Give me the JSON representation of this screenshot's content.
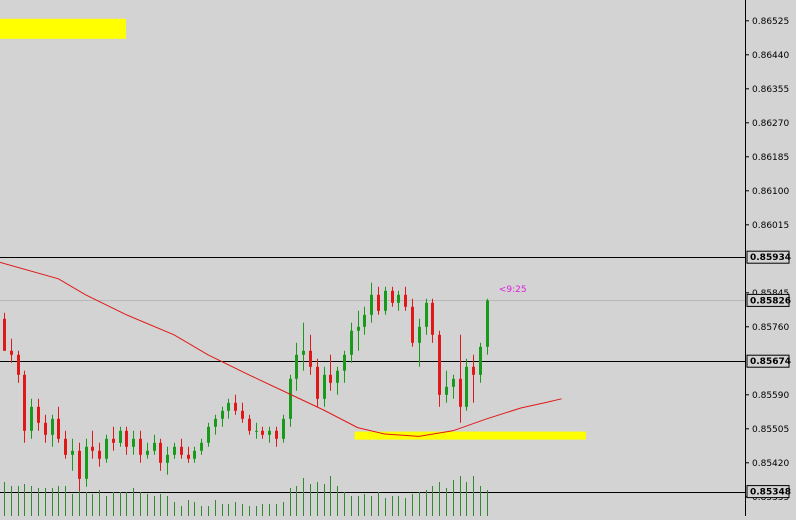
{
  "chart_data": {
    "type": "candlestick",
    "grid": false,
    "legend": "none",
    "y_axis": {
      "position": "right",
      "min": 0.853,
      "max": 0.8658,
      "ticks": [
        "0.86525",
        "0.86440",
        "0.86355",
        "0.86270",
        "0.86185",
        "0.86100",
        "0.86015",
        "0.85845",
        "0.85760",
        "0.85590",
        "0.85505",
        "0.85420",
        "0.85335"
      ],
      "tick_values": [
        0.86525,
        0.8644,
        0.86355,
        0.8627,
        0.86185,
        0.861,
        0.86015,
        0.85845,
        0.8576,
        0.8559,
        0.85505,
        0.8542,
        0.85335
      ]
    },
    "price_labels": [
      {
        "label": "0.85934",
        "value": 0.85934,
        "style": "line"
      },
      {
        "label": "0.85826",
        "value": 0.85826,
        "style": "current"
      },
      {
        "label": "0.85674",
        "value": 0.85674,
        "style": "line"
      },
      {
        "label": "0.85348",
        "value": 0.85348,
        "style": "line"
      }
    ],
    "countdown_label": "<9:25",
    "zones": [
      {
        "x_from": 0,
        "x_to": 21,
        "y_from": 0.8648,
        "y_to": 0.8653
      },
      {
        "x_from": 52,
        "x_to": 85,
        "y_from": 0.85478,
        "y_to": 0.85498
      }
    ],
    "moving_average": [
      [
        0,
        0.85921
      ],
      [
        8,
        0.8588
      ],
      [
        12,
        0.8584
      ],
      [
        18,
        0.8579
      ],
      [
        25,
        0.8574
      ],
      [
        30,
        0.8569
      ],
      [
        36,
        0.8564
      ],
      [
        42,
        0.85592
      ],
      [
        47,
        0.85552
      ],
      [
        52,
        0.85508
      ],
      [
        56,
        0.85492
      ],
      [
        61,
        0.85486
      ],
      [
        66,
        0.855
      ],
      [
        71,
        0.8553
      ],
      [
        76,
        0.85557
      ],
      [
        80,
        0.85572
      ],
      [
        82,
        0.8558
      ]
    ],
    "candles": [
      [
        0.8578,
        0.85795,
        0.857,
        0.857
      ],
      [
        0.857,
        0.8573,
        0.8567,
        0.8569
      ],
      [
        0.8569,
        0.857,
        0.8562,
        0.8564
      ],
      [
        0.8564,
        0.8565,
        0.8547,
        0.855
      ],
      [
        0.855,
        0.8558,
        0.8548,
        0.8556
      ],
      [
        0.8556,
        0.8558,
        0.855,
        0.8552
      ],
      [
        0.8552,
        0.8554,
        0.8547,
        0.8549
      ],
      [
        0.8549,
        0.8554,
        0.8546,
        0.8553
      ],
      [
        0.8553,
        0.8556,
        0.8547,
        0.8548
      ],
      [
        0.8548,
        0.855,
        0.8543,
        0.8544
      ],
      [
        0.8544,
        0.8548,
        0.854,
        0.8545
      ],
      [
        0.8545,
        0.8547,
        0.8535,
        0.8538
      ],
      [
        0.8538,
        0.8548,
        0.8536,
        0.8546
      ],
      [
        0.8546,
        0.855,
        0.8543,
        0.8545
      ],
      [
        0.8545,
        0.8547,
        0.8541,
        0.8543
      ],
      [
        0.8543,
        0.8549,
        0.8542,
        0.8548
      ],
      [
        0.8548,
        0.8551,
        0.8545,
        0.8547
      ],
      [
        0.8547,
        0.8551,
        0.8546,
        0.855
      ],
      [
        0.855,
        0.8551,
        0.8544,
        0.8546
      ],
      [
        0.8546,
        0.855,
        0.8544,
        0.8548
      ],
      [
        0.8548,
        0.855,
        0.8542,
        0.8544
      ],
      [
        0.8544,
        0.8547,
        0.8543,
        0.8545
      ],
      [
        0.8545,
        0.8549,
        0.8544,
        0.8547
      ],
      [
        0.8547,
        0.8548,
        0.854,
        0.8542
      ],
      [
        0.8542,
        0.8546,
        0.8539,
        0.8544
      ],
      [
        0.8544,
        0.8547,
        0.8543,
        0.8546
      ],
      [
        0.8546,
        0.8548,
        0.8543,
        0.8544
      ],
      [
        0.8544,
        0.8546,
        0.8542,
        0.8543
      ],
      [
        0.8543,
        0.8546,
        0.8542,
        0.8545
      ],
      [
        0.8545,
        0.8548,
        0.8544,
        0.8547
      ],
      [
        0.8547,
        0.8552,
        0.8546,
        0.8551
      ],
      [
        0.8551,
        0.8554,
        0.8549,
        0.8553
      ],
      [
        0.8553,
        0.8556,
        0.8551,
        0.8555
      ],
      [
        0.8555,
        0.8558,
        0.8553,
        0.8557
      ],
      [
        0.8557,
        0.8559,
        0.8554,
        0.8555
      ],
      [
        0.8555,
        0.8557,
        0.8552,
        0.8553
      ],
      [
        0.8553,
        0.8554,
        0.8549,
        0.855
      ],
      [
        0.855,
        0.8552,
        0.8548,
        0.855
      ],
      [
        0.855,
        0.8551,
        0.8548,
        0.8549
      ],
      [
        0.8549,
        0.8551,
        0.8547,
        0.855
      ],
      [
        0.855,
        0.8551,
        0.8546,
        0.8548
      ],
      [
        0.8548,
        0.8554,
        0.8547,
        0.8553
      ],
      [
        0.8553,
        0.8564,
        0.8551,
        0.8563
      ],
      [
        0.8563,
        0.8572,
        0.856,
        0.8569
      ],
      [
        0.8569,
        0.8577,
        0.8565,
        0.857
      ],
      [
        0.857,
        0.8574,
        0.8564,
        0.8566
      ],
      [
        0.8566,
        0.8568,
        0.8556,
        0.8558
      ],
      [
        0.8558,
        0.8566,
        0.8556,
        0.8564
      ],
      [
        0.8564,
        0.8569,
        0.856,
        0.8562
      ],
      [
        0.8562,
        0.8566,
        0.8559,
        0.8565
      ],
      [
        0.8565,
        0.857,
        0.8562,
        0.8569
      ],
      [
        0.8569,
        0.8577,
        0.8567,
        0.8575
      ],
      [
        0.8575,
        0.858,
        0.857,
        0.8576
      ],
      [
        0.8576,
        0.8581,
        0.8574,
        0.8579
      ],
      [
        0.8579,
        0.8587,
        0.8577,
        0.8584
      ],
      [
        0.8584,
        0.8586,
        0.8579,
        0.858
      ],
      [
        0.858,
        0.8586,
        0.8579,
        0.8585
      ],
      [
        0.8585,
        0.8586,
        0.8581,
        0.8582
      ],
      [
        0.8582,
        0.8585,
        0.858,
        0.8584
      ],
      [
        0.8584,
        0.8586,
        0.858,
        0.8581
      ],
      [
        0.8581,
        0.8583,
        0.8571,
        0.8572
      ],
      [
        0.8572,
        0.8578,
        0.8566,
        0.8576
      ],
      [
        0.8576,
        0.8583,
        0.8574,
        0.8582
      ],
      [
        0.8582,
        0.8583,
        0.8572,
        0.8574
      ],
      [
        0.8574,
        0.8575,
        0.8556,
        0.8559
      ],
      [
        0.8559,
        0.8565,
        0.8557,
        0.8561
      ],
      [
        0.8561,
        0.8564,
        0.8558,
        0.8563
      ],
      [
        0.8563,
        0.8574,
        0.8552,
        0.8556
      ],
      [
        0.8556,
        0.8568,
        0.8555,
        0.8566
      ],
      [
        0.8566,
        0.8569,
        0.8557,
        0.8564
      ],
      [
        0.8564,
        0.8572,
        0.8562,
        0.8571
      ],
      [
        0.8571,
        0.8583,
        0.8569,
        0.85826
      ]
    ],
    "volume_max": 60,
    "volumes": [
      34,
      30,
      30,
      32,
      30,
      28,
      28,
      28,
      30,
      30,
      22,
      26,
      24,
      22,
      26,
      20,
      24,
      24,
      24,
      28,
      24,
      22,
      20,
      22,
      20,
      14,
      10,
      16,
      14,
      10,
      10,
      16,
      12,
      12,
      14,
      12,
      10,
      10,
      12,
      12,
      12,
      14,
      28,
      30,
      38,
      32,
      34,
      32,
      40,
      30,
      24,
      20,
      20,
      22,
      20,
      24,
      18,
      20,
      20,
      18,
      22,
      24,
      26,
      30,
      34,
      28,
      36,
      40,
      34,
      40,
      30,
      26
    ]
  }
}
